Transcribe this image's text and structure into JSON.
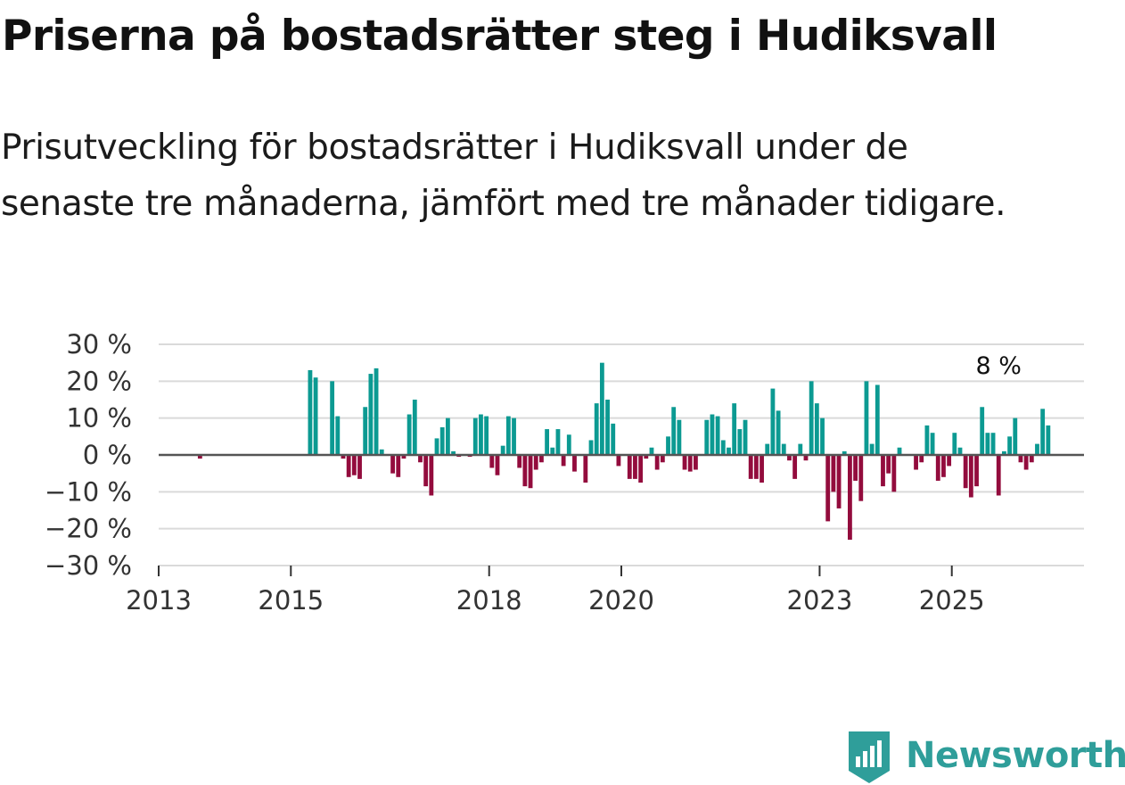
{
  "title": "Priserna på bostadsrätter steg i Hudiksvall",
  "subtitle": "Prisutveckling för bostadsrätter i Hudiksvall under de senaste tre månaderna, jämfört med tre månader tidigare.",
  "logo": {
    "text": "Newsworthy",
    "icon": "newsworthy-logo-icon"
  },
  "colors": {
    "positive": "#0c9a92",
    "negative": "#930c3d",
    "grid": "#dadada",
    "zero_line": "#555555",
    "axis_text": "#333333",
    "brand": "#2f9e9a"
  },
  "chart_data": {
    "type": "bar",
    "title": "Priserna på bostadsrätter steg i Hudiksvall",
    "xlabel": "",
    "ylabel": "",
    "unit": "%",
    "ylim": [
      -30,
      30
    ],
    "y_ticks": [
      30,
      20,
      10,
      0,
      -10,
      -20,
      -30
    ],
    "y_tick_labels": [
      "30 %",
      "20 %",
      "10 %",
      "0 %",
      "−10 %",
      "−20 %",
      "−30 %"
    ],
    "x_range": [
      "2013-01",
      "2026-12"
    ],
    "x_ticks": [
      2013,
      2015,
      2018,
      2020,
      2023,
      2025
    ],
    "x_tick_labels": [
      "2013",
      "2015",
      "2018",
      "2020",
      "2023",
      "2025"
    ],
    "grid": true,
    "annotation": {
      "text": "8 %",
      "month": "2025-09",
      "value": 8
    },
    "start_month": "2013-01",
    "values": [
      null,
      null,
      null,
      null,
      null,
      null,
      null,
      -1,
      null,
      null,
      null,
      null,
      null,
      null,
      null,
      null,
      null,
      null,
      null,
      null,
      null,
      null,
      null,
      null,
      null,
      null,
      null,
      23,
      21,
      null,
      null,
      20,
      10.5,
      -1,
      -6,
      -5.5,
      -6.5,
      13,
      22,
      23.5,
      1.5,
      null,
      -5,
      -6,
      -1,
      11,
      15,
      -2,
      -8.5,
      -11,
      4.5,
      7.5,
      10,
      1,
      -0.5,
      null,
      -0.5,
      10,
      11,
      10.5,
      -3.5,
      -5.5,
      2.5,
      10.5,
      10,
      -3.5,
      -8.5,
      -9,
      -4,
      -2,
      7,
      2,
      7,
      -3,
      5.5,
      -4.5,
      null,
      -7.5,
      4,
      14,
      25,
      15,
      8.5,
      -3,
      null,
      -6.5,
      -6.5,
      -7.5,
      -1,
      2,
      -4,
      -2,
      5,
      13,
      9.5,
      -4,
      -4.5,
      -4,
      null,
      9.5,
      11,
      10.5,
      4,
      2,
      14,
      7,
      9.5,
      -6.5,
      -6.5,
      -7.5,
      3,
      18,
      12,
      3,
      -1.5,
      -6.5,
      3,
      -1.5,
      20,
      14,
      10,
      -18,
      -10,
      -14.5,
      1,
      -23,
      -7,
      -12.5,
      20,
      3,
      19,
      -8.5,
      -5,
      -10,
      2,
      null,
      null,
      -4,
      -2,
      8,
      6,
      -7,
      -6,
      -3,
      6,
      2,
      -9,
      -11.5,
      -8.5,
      13,
      6,
      6,
      -11,
      1,
      5,
      10,
      -2,
      -4,
      -2,
      3,
      12.5,
      8
    ]
  }
}
